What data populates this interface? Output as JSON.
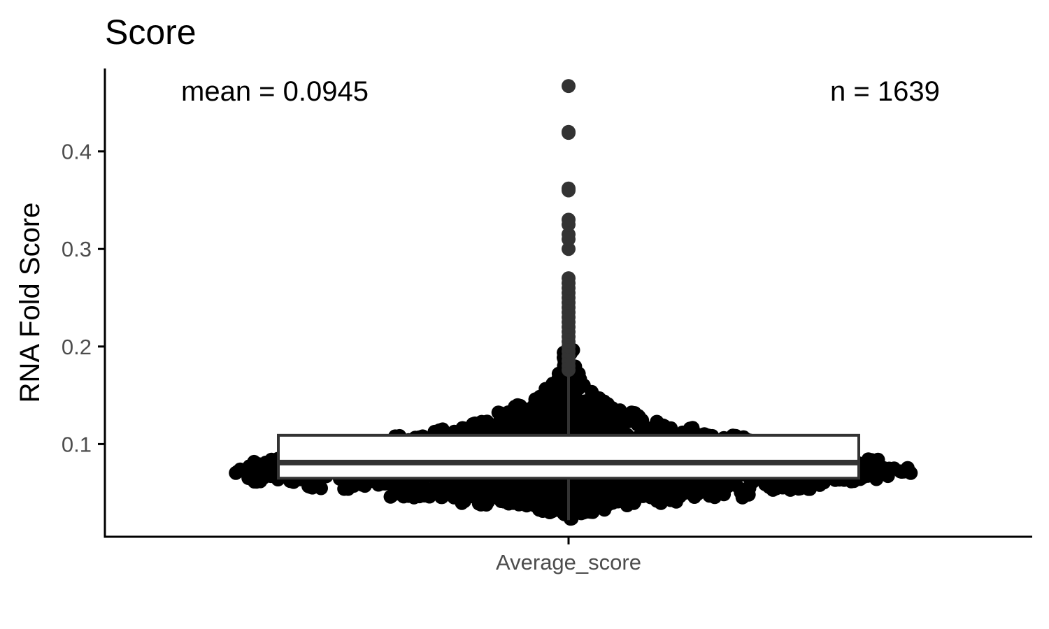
{
  "chart_data": {
    "type": "box",
    "title": "Score",
    "xlabel": "",
    "ylabel": "RNA Fold Score",
    "categories": [
      "Average_score"
    ],
    "ylim": [
      0.005,
      0.485
    ],
    "yticks": [
      0.1,
      0.2,
      0.3,
      0.4
    ],
    "ytick_labels": [
      "0.1",
      "0.2",
      "0.3",
      "0.4"
    ],
    "annotations": {
      "mean": "mean = 0.0945",
      "n": "n = 1639"
    },
    "n": 1639,
    "mean": 0.0945,
    "box": {
      "q1": 0.065,
      "median": 0.081,
      "q3": 0.109,
      "whisker_low": 0.022,
      "whisker_high": 0.174
    },
    "outliers": [
      0.176,
      0.18,
      0.185,
      0.19,
      0.195,
      0.2,
      0.205,
      0.21,
      0.215,
      0.22,
      0.225,
      0.23,
      0.235,
      0.24,
      0.245,
      0.25,
      0.255,
      0.26,
      0.265,
      0.27,
      0.3,
      0.31,
      0.315,
      0.325,
      0.33,
      0.36,
      0.362,
      0.419,
      0.42,
      0.467
    ],
    "distribution": [
      {
        "y": 0.025,
        "count": 6
      },
      {
        "y": 0.033,
        "count": 28
      },
      {
        "y": 0.041,
        "count": 70
      },
      {
        "y": 0.049,
        "count": 110
      },
      {
        "y": 0.057,
        "count": 150
      },
      {
        "y": 0.065,
        "count": 180
      },
      {
        "y": 0.073,
        "count": 190
      },
      {
        "y": 0.081,
        "count": 180
      },
      {
        "y": 0.089,
        "count": 160
      },
      {
        "y": 0.097,
        "count": 135
      },
      {
        "y": 0.105,
        "count": 110
      },
      {
        "y": 0.113,
        "count": 85
      },
      {
        "y": 0.121,
        "count": 65
      },
      {
        "y": 0.129,
        "count": 50
      },
      {
        "y": 0.137,
        "count": 38
      },
      {
        "y": 0.145,
        "count": 28
      },
      {
        "y": 0.153,
        "count": 20
      },
      {
        "y": 0.161,
        "count": 14
      },
      {
        "y": 0.169,
        "count": 10
      },
      {
        "y": 0.177,
        "count": 8
      },
      {
        "y": 0.185,
        "count": 6
      },
      {
        "y": 0.193,
        "count": 5
      }
    ],
    "colors": {
      "points": "#000000",
      "outliers": "#333333",
      "box_stroke": "#333333",
      "box_fill": "#ffffff",
      "axis": "#000000",
      "tick_label": "#4d4d4d"
    },
    "grid": false,
    "legend": "none"
  }
}
